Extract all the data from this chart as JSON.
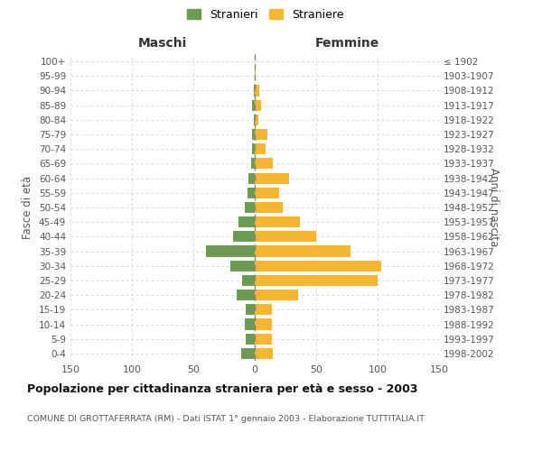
{
  "age_groups": [
    "0-4",
    "5-9",
    "10-14",
    "15-19",
    "20-24",
    "25-29",
    "30-34",
    "35-39",
    "40-44",
    "45-49",
    "50-54",
    "55-59",
    "60-64",
    "65-69",
    "70-74",
    "75-79",
    "80-84",
    "85-89",
    "90-94",
    "95-99",
    "100+"
  ],
  "birth_years": [
    "1998-2002",
    "1993-1997",
    "1988-1992",
    "1983-1987",
    "1978-1982",
    "1973-1977",
    "1968-1972",
    "1963-1967",
    "1958-1962",
    "1953-1957",
    "1948-1952",
    "1943-1947",
    "1938-1942",
    "1933-1937",
    "1928-1932",
    "1923-1927",
    "1918-1922",
    "1913-1917",
    "1908-1912",
    "1903-1907",
    "≤ 1902"
  ],
  "maschi": [
    11,
    7,
    8,
    7,
    15,
    10,
    20,
    40,
    18,
    13,
    8,
    6,
    5,
    3,
    2,
    2,
    1,
    2,
    1,
    0,
    0
  ],
  "femmine": [
    15,
    14,
    14,
    14,
    35,
    100,
    103,
    78,
    50,
    37,
    23,
    20,
    28,
    15,
    9,
    10,
    3,
    5,
    4,
    1,
    0
  ],
  "color_maschi": "#6d9b54",
  "color_femmine": "#f5b731",
  "title": "Popolazione per cittadinanza straniera per età e sesso - 2003",
  "subtitle": "COMUNE DI GROTTAFERRATA (RM) - Dati ISTAT 1° gennaio 2003 - Elaborazione TUTTITALIA.IT",
  "xlabel_left": "Maschi",
  "xlabel_right": "Femmine",
  "ylabel_left": "Fasce di età",
  "ylabel_right": "Anni di nascita",
  "legend_maschi": "Stranieri",
  "legend_femmine": "Straniere",
  "xlim": 150,
  "background_color": "#ffffff",
  "grid_color": "#cccccc"
}
